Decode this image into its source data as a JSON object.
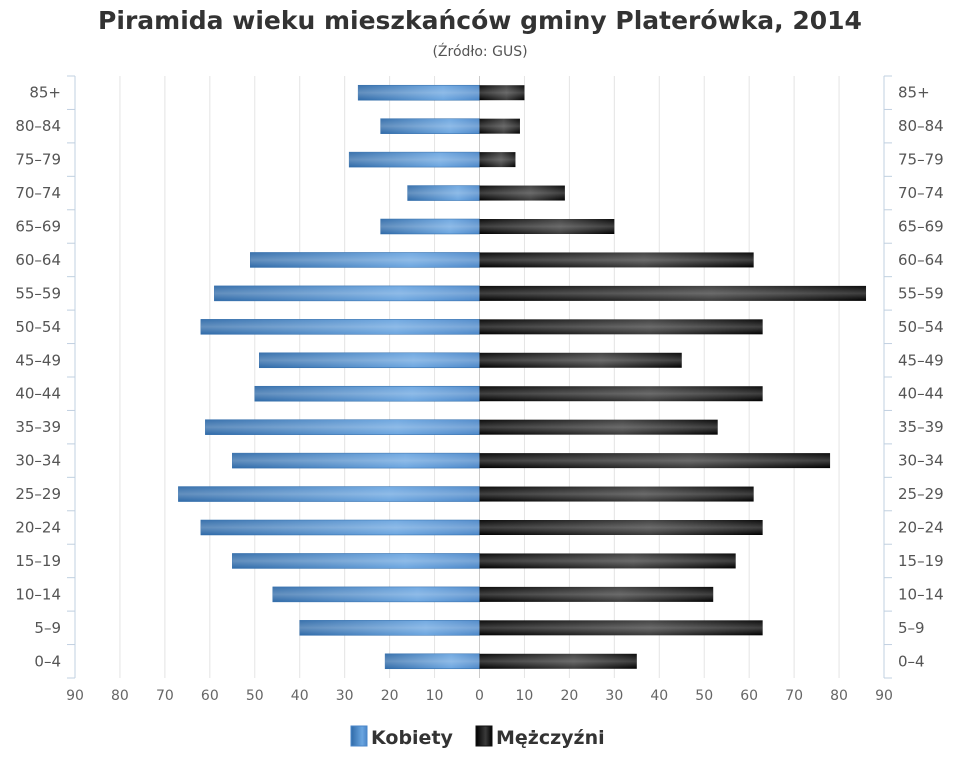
{
  "chart_data": {
    "type": "bar",
    "orientation": "horizontal-pyramid",
    "title": "Piramida wieku mieszkańców gminy Platerówka, 2014",
    "subtitle": "(Źródło: GUS)",
    "categories": [
      "85+",
      "80-84",
      "75-79",
      "70-74",
      "65-69",
      "60-64",
      "55-59",
      "50-54",
      "45-49",
      "40-44",
      "35-39",
      "30-34",
      "25-29",
      "20-24",
      "15-19",
      "10-14",
      "5-9",
      "0-4"
    ],
    "series": [
      {
        "name": "Kobiety",
        "color": "#4a86c8",
        "values": [
          27,
          22,
          29,
          16,
          22,
          51,
          59,
          62,
          49,
          50,
          61,
          55,
          67,
          62,
          55,
          46,
          40,
          21
        ]
      },
      {
        "name": "Mężczyźni",
        "color": "#111111",
        "values": [
          10,
          9,
          8,
          19,
          30,
          61,
          86,
          63,
          45,
          63,
          53,
          78,
          61,
          63,
          57,
          52,
          63,
          35
        ]
      }
    ],
    "xlim": [
      -90,
      90
    ],
    "x_ticks": [
      "90",
      "80",
      "70",
      "60",
      "50",
      "40",
      "30",
      "20",
      "10",
      "0",
      "10",
      "20",
      "30",
      "40",
      "50",
      "60",
      "70",
      "80",
      "90"
    ],
    "grid": true,
    "legend_position": "bottom"
  }
}
